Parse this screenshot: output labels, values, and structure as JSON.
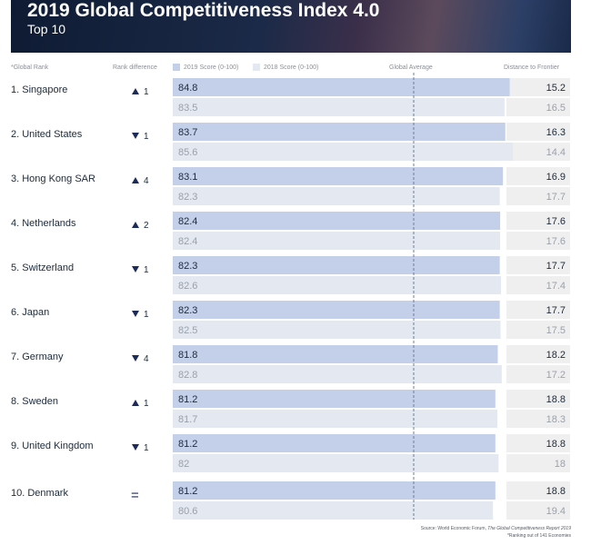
{
  "header": {
    "title": "2019 Global Competitiveness Index 4.0",
    "subtitle": "Top 10"
  },
  "columns": {
    "rank": "*Global Rank",
    "rank_diff": "Rank difference",
    "score_2019": "2019 Score (0-100)",
    "score_2018": "2018 Score (0-100)",
    "global_avg": "Global Average",
    "distance": "Distance to Frontier"
  },
  "colors": {
    "bar_2019": "#c4d0ea",
    "bar_2018": "#e3e8f1",
    "text_2019": "#1c2a3a",
    "text_2018": "#9aa1ab",
    "distance_bg": "#efefef",
    "arrow": "#1c2a5a"
  },
  "chart_data": {
    "type": "bar",
    "orientation": "horizontal",
    "title": "2019 Global Competitiveness Index 4.0",
    "subtitle": "Top 10",
    "categories": [
      "1. Singapore",
      "2. United States",
      "3. Hong Kong SAR",
      "4. Netherlands",
      "5. Switzerland",
      "6. Japan",
      "7. Germany",
      "8. Sweden",
      "9. United Kingdom",
      "10. Denmark"
    ],
    "rank_change": [
      {
        "direction": "up",
        "label": "1"
      },
      {
        "direction": "down",
        "label": "1"
      },
      {
        "direction": "up",
        "label": "4"
      },
      {
        "direction": "up",
        "label": "2"
      },
      {
        "direction": "down",
        "label": "1"
      },
      {
        "direction": "down",
        "label": "1"
      },
      {
        "direction": "down",
        "label": "4"
      },
      {
        "direction": "up",
        "label": "1"
      },
      {
        "direction": "down",
        "label": "1"
      },
      {
        "direction": "same",
        "label": "="
      }
    ],
    "series": [
      {
        "name": "2019 Score (0-100)",
        "values": [
          84.8,
          83.7,
          83.1,
          82.4,
          82.3,
          82.3,
          81.8,
          81.2,
          81.2,
          81.2
        ],
        "labels": [
          "84.8",
          "83.7",
          "83.1",
          "82.4",
          "82.3",
          "82.3",
          "81.8",
          "81.2",
          "81.2",
          "81.2"
        ],
        "distance": [
          "15.2",
          "16.3",
          "16.9",
          "17.6",
          "17.7",
          "17.7",
          "18.2",
          "18.8",
          "18.8",
          "18.8"
        ]
      },
      {
        "name": "2018 Score (0-100)",
        "values": [
          83.5,
          85.6,
          82.3,
          82.4,
          82.6,
          82.5,
          82.8,
          81.7,
          82,
          80.6
        ],
        "labels": [
          "83.5",
          "85.6",
          "82.3",
          "82.4",
          "82.6",
          "82.5",
          "82.8",
          "81.7",
          "82",
          "80.6"
        ],
        "distance": [
          "16.5",
          "14.4",
          "17.7",
          "17.6",
          "17.4",
          "17.5",
          "17.2",
          "18.3",
          "18",
          "19.4"
        ]
      }
    ],
    "global_average_label": "Global Average",
    "xlim": [
      0,
      100
    ],
    "grid": false
  },
  "footer": {
    "source_prefix": "Source: World Economic Forum, ",
    "source_title": "The Global Competitiveness Report 2019",
    "footnote": "*Ranking out of 141 Economies"
  }
}
